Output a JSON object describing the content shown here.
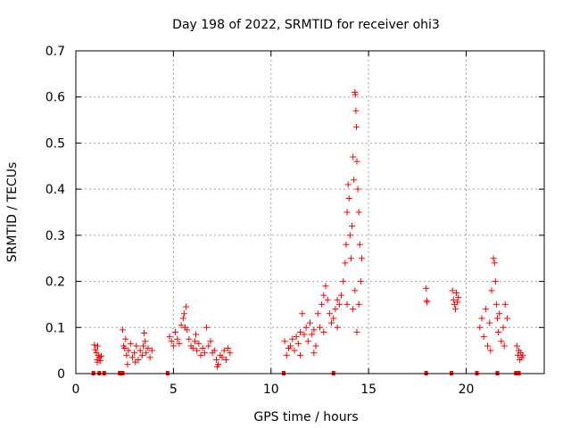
{
  "chart_data": {
    "type": "scatter",
    "title": "Day 198 of 2022, SRMTID for receiver ohi3",
    "xlabel": "GPS time / hours",
    "ylabel": "SRMTID / TECUs",
    "xlim": [
      0,
      24
    ],
    "ylim": [
      0,
      0.7
    ],
    "xticks": [
      "0",
      "5",
      "10",
      "15",
      "20"
    ],
    "yticks": [
      "0",
      "0.1",
      "0.2",
      "0.3",
      "0.4",
      "0.5",
      "0.6",
      "0.7"
    ],
    "grid": true,
    "marker": "+",
    "series_color": "#ff0000",
    "series": [
      {
        "name": "SRMTID",
        "points": [
          [
            0.95,
            0.062
          ],
          [
            1.0,
            0.052
          ],
          [
            1.05,
            0.045
          ],
          [
            1.1,
            0.03
          ],
          [
            1.12,
            0.06
          ],
          [
            1.15,
            0.04
          ],
          [
            1.2,
            0.035
          ],
          [
            1.25,
            0.028
          ],
          [
            1.3,
            0.038
          ],
          [
            1.1,
            0.025
          ],
          [
            2.4,
            0.095
          ],
          [
            2.45,
            0.06
          ],
          [
            2.5,
            0.055
          ],
          [
            2.55,
            0.075
          ],
          [
            2.6,
            0.04
          ],
          [
            2.7,
            0.05
          ],
          [
            2.8,
            0.065
          ],
          [
            2.9,
            0.035
          ],
          [
            3.0,
            0.045
          ],
          [
            3.1,
            0.06
          ],
          [
            3.2,
            0.03
          ],
          [
            3.3,
            0.05
          ],
          [
            3.4,
            0.04
          ],
          [
            3.5,
            0.088
          ],
          [
            3.55,
            0.07
          ],
          [
            3.6,
            0.045
          ],
          [
            3.7,
            0.055
          ],
          [
            3.8,
            0.035
          ],
          [
            3.9,
            0.05
          ],
          [
            2.65,
            0.02
          ],
          [
            3.05,
            0.025
          ],
          [
            3.45,
            0.06
          ],
          [
            4.8,
            0.08
          ],
          [
            4.9,
            0.07
          ],
          [
            5.0,
            0.06
          ],
          [
            5.1,
            0.09
          ],
          [
            5.2,
            0.075
          ],
          [
            5.3,
            0.065
          ],
          [
            5.4,
            0.105
          ],
          [
            5.5,
            0.12
          ],
          [
            5.55,
            0.13
          ],
          [
            5.6,
            0.1
          ],
          [
            5.7,
            0.095
          ],
          [
            5.8,
            0.075
          ],
          [
            5.9,
            0.06
          ],
          [
            6.0,
            0.055
          ],
          [
            6.1,
            0.07
          ],
          [
            6.2,
            0.05
          ],
          [
            6.3,
            0.065
          ],
          [
            6.4,
            0.04
          ],
          [
            6.5,
            0.055
          ],
          [
            6.6,
            0.045
          ],
          [
            6.7,
            0.1
          ],
          [
            6.8,
            0.06
          ],
          [
            6.9,
            0.07
          ],
          [
            7.0,
            0.045
          ],
          [
            7.1,
            0.05
          ],
          [
            7.2,
            0.03
          ],
          [
            7.3,
            0.02
          ],
          [
            7.4,
            0.04
          ],
          [
            7.5,
            0.035
          ],
          [
            7.6,
            0.05
          ],
          [
            7.7,
            0.03
          ],
          [
            7.8,
            0.055
          ],
          [
            7.9,
            0.045
          ],
          [
            5.65,
            0.145
          ],
          [
            6.15,
            0.085
          ],
          [
            7.25,
            0.015
          ],
          [
            10.7,
            0.07
          ],
          [
            10.8,
            0.04
          ],
          [
            10.9,
            0.055
          ],
          [
            11.0,
            0.06
          ],
          [
            11.1,
            0.075
          ],
          [
            11.2,
            0.05
          ],
          [
            11.3,
            0.08
          ],
          [
            11.4,
            0.065
          ],
          [
            11.5,
            0.09
          ],
          [
            11.6,
            0.13
          ],
          [
            11.7,
            0.085
          ],
          [
            11.8,
            0.1
          ],
          [
            11.9,
            0.07
          ],
          [
            12.0,
            0.11
          ],
          [
            12.1,
            0.085
          ],
          [
            12.2,
            0.095
          ],
          [
            12.3,
            0.06
          ],
          [
            12.4,
            0.13
          ],
          [
            12.5,
            0.1
          ],
          [
            12.6,
            0.15
          ],
          [
            12.7,
            0.17
          ],
          [
            12.8,
            0.19
          ],
          [
            12.9,
            0.16
          ],
          [
            13.0,
            0.13
          ],
          [
            13.1,
            0.11
          ],
          [
            13.2,
            0.12
          ],
          [
            13.3,
            0.14
          ],
          [
            13.4,
            0.16
          ],
          [
            13.5,
            0.15
          ],
          [
            13.6,
            0.17
          ],
          [
            13.7,
            0.2
          ],
          [
            13.8,
            0.24
          ],
          [
            13.85,
            0.28
          ],
          [
            13.9,
            0.35
          ],
          [
            13.95,
            0.41
          ],
          [
            14.0,
            0.38
          ],
          [
            14.05,
            0.3
          ],
          [
            14.1,
            0.25
          ],
          [
            14.15,
            0.32
          ],
          [
            14.2,
            0.47
          ],
          [
            14.25,
            0.42
          ],
          [
            14.3,
            0.61
          ],
          [
            14.32,
            0.605
          ],
          [
            14.35,
            0.57
          ],
          [
            14.38,
            0.535
          ],
          [
            14.4,
            0.46
          ],
          [
            14.45,
            0.4
          ],
          [
            14.5,
            0.35
          ],
          [
            14.55,
            0.28
          ],
          [
            14.6,
            0.2
          ],
          [
            14.65,
            0.25
          ],
          [
            14.5,
            0.15
          ],
          [
            14.3,
            0.18
          ],
          [
            13.9,
            0.15
          ],
          [
            13.4,
            0.1
          ],
          [
            12.7,
            0.09
          ],
          [
            11.5,
            0.04
          ],
          [
            12.2,
            0.045
          ],
          [
            14.2,
            0.14
          ],
          [
            14.4,
            0.09
          ],
          [
            17.95,
            0.185
          ],
          [
            17.98,
            0.158
          ],
          [
            18.0,
            0.155
          ],
          [
            19.3,
            0.18
          ],
          [
            19.35,
            0.16
          ],
          [
            19.4,
            0.15
          ],
          [
            19.45,
            0.14
          ],
          [
            19.5,
            0.175
          ],
          [
            19.55,
            0.155
          ],
          [
            19.6,
            0.165
          ],
          [
            20.7,
            0.1
          ],
          [
            20.8,
            0.12
          ],
          [
            20.9,
            0.08
          ],
          [
            21.0,
            0.14
          ],
          [
            21.1,
            0.06
          ],
          [
            21.2,
            0.11
          ],
          [
            21.3,
            0.18
          ],
          [
            21.4,
            0.25
          ],
          [
            21.45,
            0.24
          ],
          [
            21.5,
            0.2
          ],
          [
            21.55,
            0.15
          ],
          [
            21.6,
            0.12
          ],
          [
            21.7,
            0.13
          ],
          [
            21.8,
            0.07
          ],
          [
            21.9,
            0.1
          ],
          [
            22.0,
            0.15
          ],
          [
            22.1,
            0.12
          ],
          [
            21.25,
            0.05
          ],
          [
            21.65,
            0.09
          ],
          [
            21.95,
            0.06
          ],
          [
            22.6,
            0.06
          ],
          [
            22.65,
            0.04
          ],
          [
            22.7,
            0.05
          ],
          [
            22.75,
            0.03
          ],
          [
            22.8,
            0.045
          ],
          [
            22.85,
            0.035
          ],
          [
            22.9,
            0.04
          ]
        ]
      }
    ],
    "zero_markers_x": [
      0.9,
      1.2,
      1.45,
      2.25,
      2.4,
      4.7,
      10.65,
      13.2,
      17.95,
      19.25,
      20.55,
      21.6,
      22.55,
      22.7
    ]
  }
}
